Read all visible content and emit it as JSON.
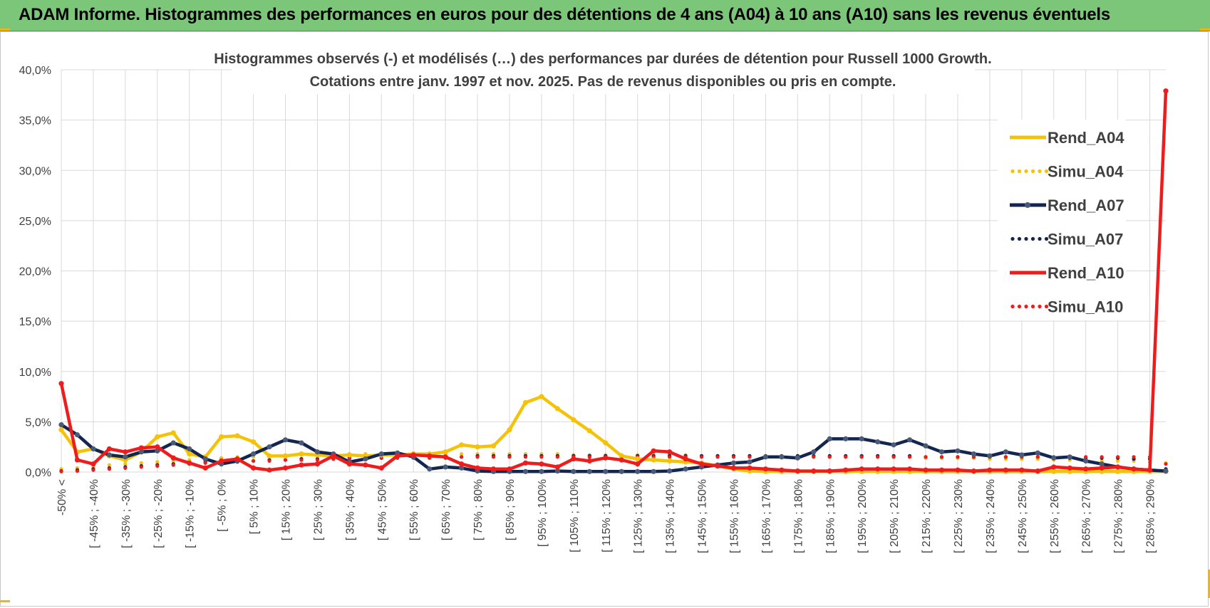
{
  "banner": {
    "title": "ADAM Informe. Histogrammes des performances en euros pour des détentions de 4 ans (A04) à 10 ans (A10) sans les revenus éventuels"
  },
  "colors": {
    "banner_bg": "#7cc67a",
    "A04": "#f5c20a",
    "A07": "#12264f",
    "A10": "#ee1c1c",
    "grid": "#d9d9d9"
  },
  "chart_data": {
    "type": "line",
    "title_line1": "Histogrammes observés (-) et modélisés (…) des performances par durées de détention pour Russell 1000 Growth.",
    "title_line2": "Cotations entre janv. 1997 et nov. 2025. Pas de revenus disponibles ou pris en compte.",
    "ylim": [
      0,
      40
    ],
    "ytick_labels": [
      "0,0%",
      "5,0%",
      "10,0%",
      "15,0%",
      "20,0%",
      "25,0%",
      "30,0%",
      "35,0%",
      "40,0%"
    ],
    "grid": true,
    "legend_position": "right",
    "x_labels": [
      "-50% <",
      "[ -45% ; -40%",
      "[ -35% ; -30%",
      "[ -25% ; -20%",
      "[ -15% ; -10%",
      "[ -5% ; 0%",
      "[ 5% ; 10%",
      "[ 15% ; 20%",
      "[ 25% ; 30%",
      "[ 35% ; 40%",
      "[ 45% ; 50%",
      "[ 55% ; 60%",
      "[ 65% ; 70%",
      "[ 75% ; 80%",
      "[ 85% ; 90%",
      "[ 95% ; 100%",
      "[ 105% ; 110%",
      "[ 115% ; 120%",
      "[ 125% ; 130%",
      "[ 135% ; 140%",
      "[ 145% ; 150%",
      "[ 155% ; 160%",
      "[ 165% ; 170%",
      "[ 175% ; 180%",
      "[ 185% ; 190%",
      "[ 195% ; 200%",
      "[ 205% ; 210%",
      "[ 215% ; 220%",
      "[ 225% ; 230%",
      "[ 235% ; 240%",
      "[ 245% ; 250%",
      "[ 255% ; 260%",
      "[ 265% ; 270%",
      "[ 275% ; 280%",
      "[ 285% ; 290%"
    ],
    "series": [
      {
        "name": "Rend_A04",
        "style": "solid",
        "color": "#f5c20a",
        "values": [
          4.2,
          2.0,
          2.3,
          1.6,
          1.2,
          2.0,
          3.5,
          3.9,
          1.8,
          1.5,
          3.5,
          3.6,
          3.0,
          1.6,
          1.6,
          1.8,
          1.7,
          1.6,
          1.7,
          1.6,
          1.7,
          1.7,
          1.8,
          1.8,
          2.0,
          2.7,
          2.5,
          2.6,
          4.2,
          6.9,
          7.5,
          6.3,
          5.2,
          4.1,
          2.9,
          1.6,
          1.3,
          1.2,
          1.1,
          1.0,
          0.9,
          0.6,
          0.3,
          0.1,
          0.05,
          0.05,
          0.05,
          0.05,
          0.05,
          0.05,
          0.05,
          0.05,
          0.05,
          0.05,
          0.05,
          0.05,
          0.05,
          0.05,
          0.05,
          0.05,
          0.05,
          0.05,
          0.05,
          0.05,
          0.05,
          0.05,
          0.05,
          0.05,
          0.05,
          0.05
        ]
      },
      {
        "name": "Simu_A04",
        "style": "dotted",
        "color": "#f5c20a",
        "values": [
          0.3,
          0.4,
          0.5,
          0.7,
          0.8,
          0.9,
          1.0,
          1.1,
          1.2,
          1.3,
          1.4,
          1.5,
          1.5,
          1.6,
          1.6,
          1.7,
          1.7,
          1.7,
          1.8,
          1.8,
          1.8,
          1.8,
          1.8,
          1.8,
          1.8,
          1.8,
          1.8,
          1.8,
          1.8,
          1.8,
          1.8,
          1.8,
          1.7,
          1.7,
          1.7,
          1.7,
          1.7,
          1.7,
          1.7,
          1.7,
          1.6,
          1.6,
          1.6,
          1.6,
          1.6,
          1.6,
          1.6,
          1.5,
          1.5,
          1.5,
          1.5,
          1.5,
          1.5,
          1.5,
          1.4,
          1.4,
          1.4,
          1.4,
          1.3,
          1.3,
          1.3,
          1.3,
          1.2,
          1.2,
          1.2,
          1.1,
          1.1,
          1.1,
          1.0,
          0.9
        ]
      },
      {
        "name": "Rend_A07",
        "style": "solid",
        "color": "#12264f",
        "values": [
          4.7,
          3.7,
          2.3,
          1.7,
          1.5,
          2.0,
          2.1,
          2.9,
          2.3,
          1.3,
          0.8,
          1.1,
          1.8,
          2.5,
          3.2,
          2.9,
          2.0,
          1.8,
          1.0,
          1.3,
          1.8,
          1.9,
          1.5,
          0.3,
          0.5,
          0.4,
          0.1,
          0.05,
          0.05,
          0.05,
          0.05,
          0.1,
          0.05,
          0.05,
          0.05,
          0.05,
          0.05,
          0.05,
          0.1,
          0.3,
          0.5,
          0.7,
          0.9,
          1.0,
          1.5,
          1.5,
          1.4,
          2.0,
          3.3,
          3.3,
          3.3,
          3.0,
          2.7,
          3.2,
          2.6,
          2.0,
          2.1,
          1.8,
          1.6,
          2.0,
          1.7,
          1.9,
          1.4,
          1.5,
          1.1,
          0.8,
          0.5,
          0.3,
          0.2,
          0.1
        ]
      },
      {
        "name": "Simu_A07",
        "style": "dotted",
        "color": "#12264f",
        "values": [
          0.1,
          0.2,
          0.3,
          0.4,
          0.5,
          0.6,
          0.7,
          0.8,
          0.9,
          1.0,
          1.0,
          1.1,
          1.1,
          1.2,
          1.2,
          1.3,
          1.3,
          1.3,
          1.4,
          1.4,
          1.4,
          1.5,
          1.5,
          1.5,
          1.5,
          1.5,
          1.6,
          1.6,
          1.6,
          1.6,
          1.6,
          1.6,
          1.6,
          1.6,
          1.6,
          1.6,
          1.6,
          1.6,
          1.6,
          1.6,
          1.6,
          1.6,
          1.6,
          1.6,
          1.6,
          1.6,
          1.6,
          1.6,
          1.6,
          1.6,
          1.6,
          1.6,
          1.6,
          1.6,
          1.5,
          1.5,
          1.5,
          1.5,
          1.5,
          1.5,
          1.5,
          1.5,
          1.4,
          1.4,
          1.4,
          1.4,
          1.4,
          1.3,
          1.3,
          0.3
        ]
      },
      {
        "name": "Rend_A10",
        "style": "solid",
        "color": "#ee1c1c",
        "values": [
          8.8,
          1.2,
          0.8,
          2.3,
          2.0,
          2.4,
          2.5,
          1.4,
          0.9,
          0.4,
          1.1,
          1.3,
          0.4,
          0.2,
          0.4,
          0.7,
          0.8,
          1.6,
          0.8,
          0.7,
          0.4,
          1.6,
          1.7,
          1.6,
          1.5,
          0.8,
          0.4,
          0.3,
          0.3,
          0.9,
          0.8,
          0.5,
          1.3,
          1.1,
          1.4,
          1.2,
          0.8,
          2.1,
          2.0,
          1.3,
          0.8,
          0.6,
          0.4,
          0.4,
          0.3,
          0.2,
          0.1,
          0.1,
          0.1,
          0.2,
          0.3,
          0.3,
          0.3,
          0.3,
          0.2,
          0.2,
          0.2,
          0.1,
          0.2,
          0.2,
          0.2,
          0.1,
          0.5,
          0.4,
          0.3,
          0.4,
          0.5,
          0.3,
          0.2,
          37.9
        ]
      },
      {
        "name": "Simu_A10",
        "style": "dotted",
        "color": "#ee1c1c",
        "values": [
          0.05,
          0.1,
          0.2,
          0.3,
          0.4,
          0.5,
          0.6,
          0.7,
          0.8,
          0.9,
          1.0,
          1.0,
          1.1,
          1.1,
          1.2,
          1.2,
          1.2,
          1.3,
          1.3,
          1.3,
          1.4,
          1.4,
          1.4,
          1.4,
          1.4,
          1.5,
          1.5,
          1.5,
          1.5,
          1.5,
          1.5,
          1.5,
          1.5,
          1.5,
          1.5,
          1.5,
          1.5,
          1.5,
          1.5,
          1.5,
          1.5,
          1.5,
          1.5,
          1.5,
          1.5,
          1.5,
          1.5,
          1.5,
          1.5,
          1.5,
          1.5,
          1.5,
          1.5,
          1.5,
          1.5,
          1.5,
          1.5,
          1.5,
          1.5,
          1.5,
          1.5,
          1.5,
          1.5,
          1.5,
          1.5,
          1.5,
          1.5,
          1.5,
          1.5,
          0.8
        ]
      }
    ]
  }
}
